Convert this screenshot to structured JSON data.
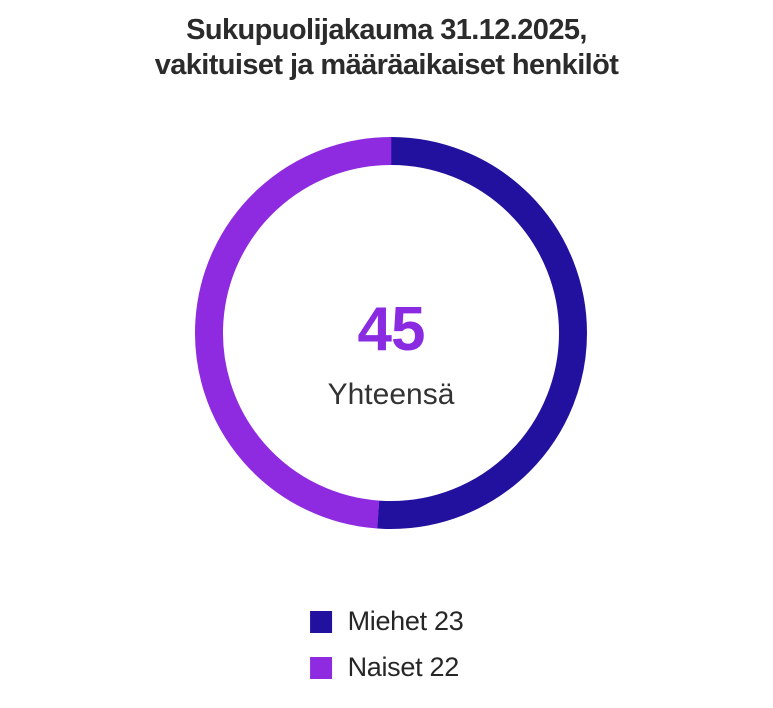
{
  "title": {
    "line1": "Sukupuolijakauma 31.12.2025,",
    "line2": "vakituiset ja määräaikaiset henkilöt"
  },
  "chart_data": {
    "type": "pie",
    "subtype": "donut",
    "title": "Sukupuolijakauma 31.12.2025, vakituiset ja määräaikaiset henkilöt",
    "categories": [
      "Miehet",
      "Naiset"
    ],
    "values": [
      23,
      22
    ],
    "total": 45,
    "colors": [
      "#22119e",
      "#8e2be0"
    ],
    "start_angle_deg": -90,
    "direction": "clockwise",
    "legend_position": "bottom",
    "center": {
      "value": "45",
      "value_color": "#8a2be2",
      "label": "Yhteensä"
    },
    "legend": [
      {
        "label": "Miehet 23",
        "color": "#22119e"
      },
      {
        "label": "Naiset 22",
        "color": "#8e2be0"
      }
    ]
  },
  "colors": {
    "title_text": "#2b2b2b",
    "center_label_text": "#333333",
    "legend_text": "#262626",
    "background": "#ffffff"
  }
}
